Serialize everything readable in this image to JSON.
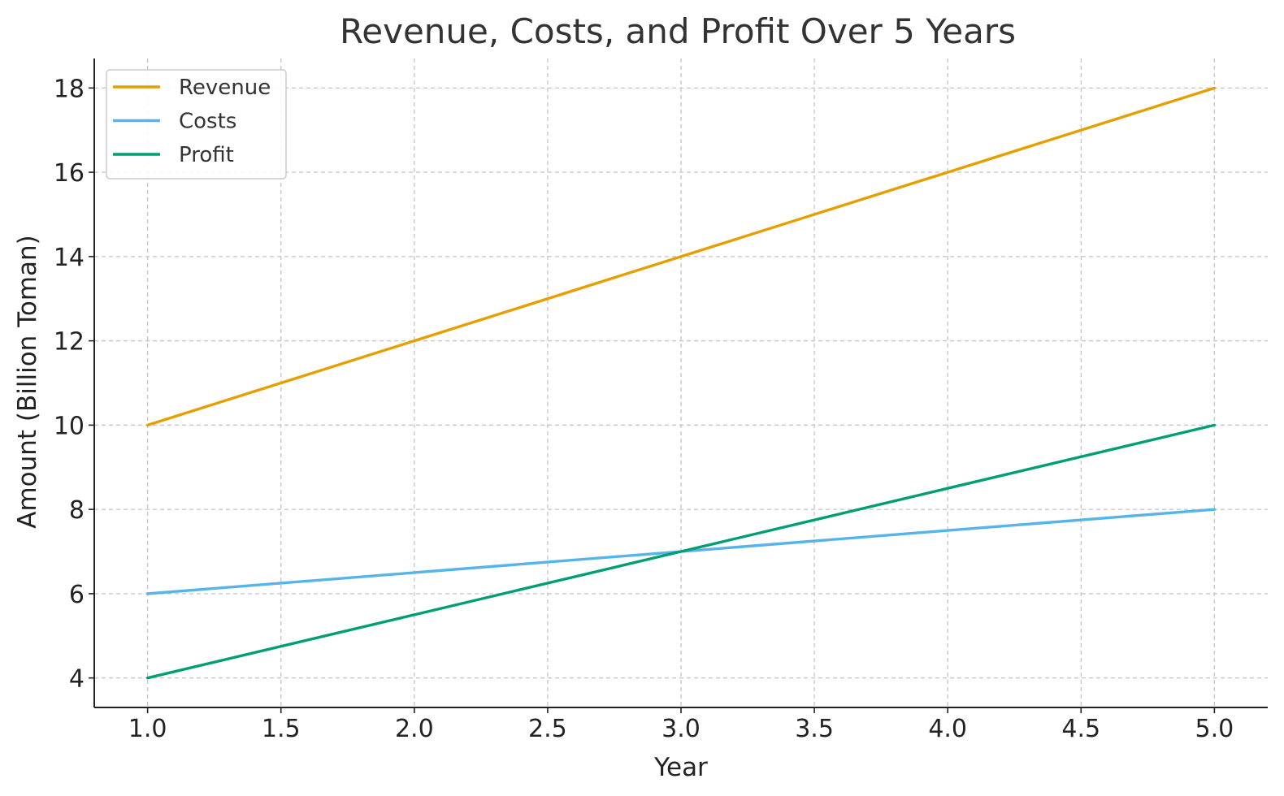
{
  "chart_data": {
    "type": "line",
    "title": "Revenue, Costs, and Profit Over 5 Years",
    "xlabel": "Year",
    "ylabel": "Amount (Billion Toman)",
    "xlim": [
      0.8,
      5.2
    ],
    "ylim": [
      3.3,
      18.7
    ],
    "x_ticks": [
      1.0,
      1.5,
      2.0,
      2.5,
      3.0,
      3.5,
      4.0,
      4.5,
      5.0
    ],
    "x_tick_labels": [
      "1.0",
      "1.5",
      "2.0",
      "2.5",
      "3.0",
      "3.5",
      "4.0",
      "4.5",
      "5.0"
    ],
    "y_ticks": [
      4,
      6,
      8,
      10,
      12,
      14,
      16,
      18
    ],
    "y_tick_labels": [
      "4",
      "6",
      "8",
      "10",
      "12",
      "14",
      "16",
      "18"
    ],
    "grid": true,
    "legend_position": "top-left",
    "x": [
      1,
      2,
      3,
      4,
      5
    ],
    "series": [
      {
        "name": "Revenue",
        "values": [
          10,
          12,
          14,
          16,
          18
        ],
        "color": "#E69F00"
      },
      {
        "name": "Costs",
        "values": [
          6,
          6.5,
          7,
          7.5,
          8
        ],
        "color": "#56B4E9"
      },
      {
        "name": "Profit",
        "values": [
          4,
          5.5,
          7,
          8.5,
          10
        ],
        "color": "#009E73"
      }
    ]
  }
}
